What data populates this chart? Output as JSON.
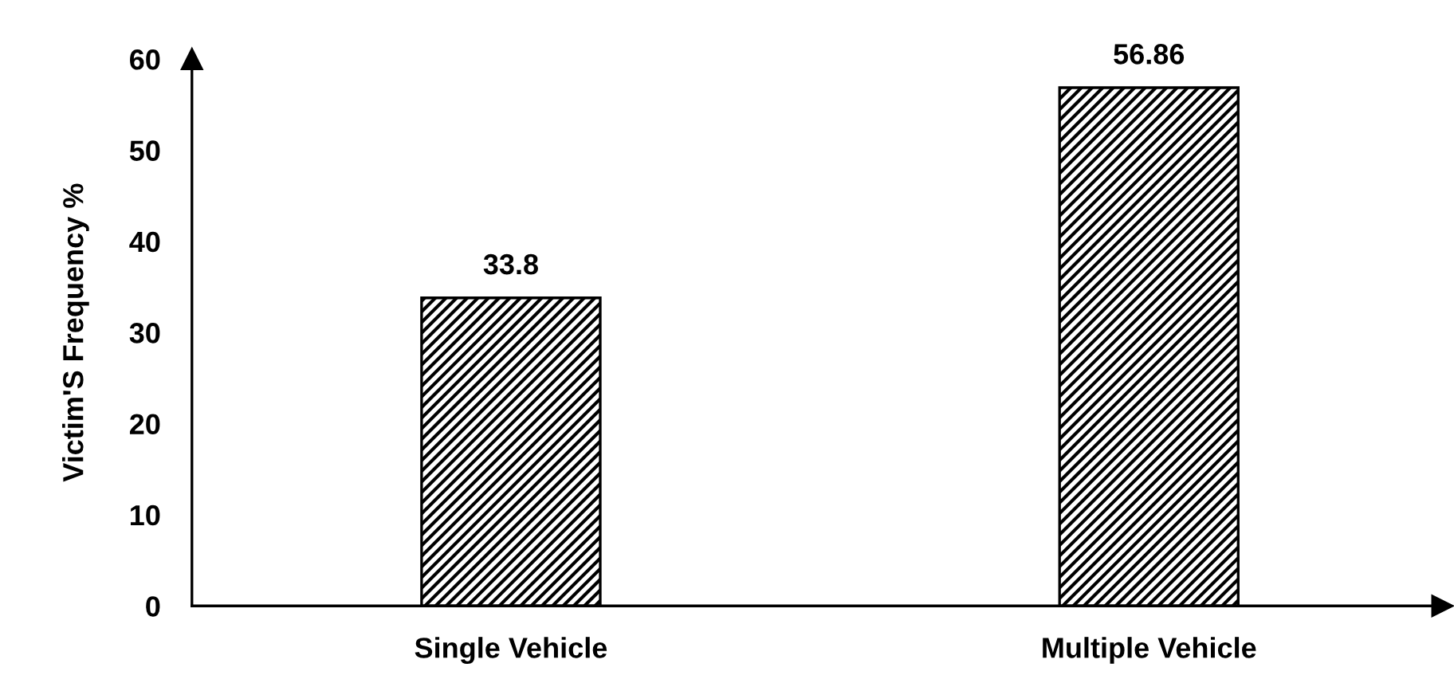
{
  "chart_data": {
    "type": "bar",
    "ylabel": "Victim'S Frequency %",
    "categories": [
      "Single Vehicle",
      "Multiple Vehicle"
    ],
    "values": [
      33.8,
      56.86
    ],
    "color": "#000000",
    "ylim": [
      0,
      60
    ],
    "yticks": [
      0,
      10,
      20,
      30,
      40,
      50,
      60
    ],
    "grid": false,
    "data_labels": true
  }
}
